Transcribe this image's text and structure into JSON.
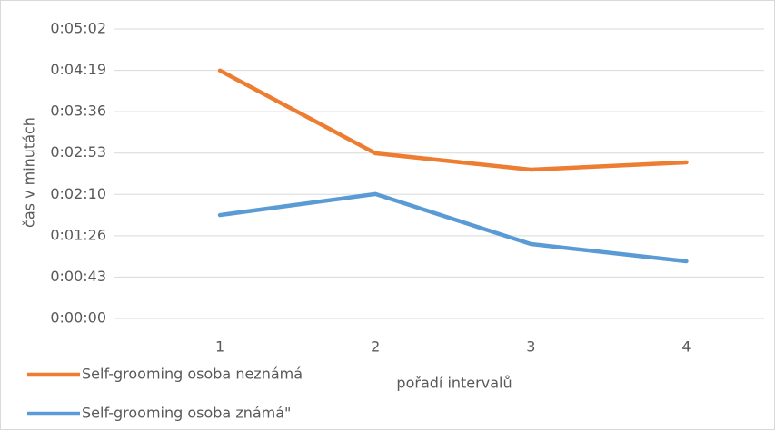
{
  "chart_data": {
    "type": "line",
    "categories": [
      "1",
      "2",
      "3",
      "4"
    ],
    "series": [
      {
        "name": "Self-grooming osoba neznámá",
        "color": "#ed7d31",
        "values": [
          259,
          172.5,
          155.5,
          163
        ]
      },
      {
        "name": "Self-grooming osoba známá\"",
        "color": "#5b9bd5",
        "values": [
          108,
          130,
          77.7,
          59.7
        ]
      }
    ],
    "xlabel": "pořadí intervalů",
    "ylabel": "čas v minutách",
    "ylim": [
      0,
      302.4
    ],
    "yticks": [
      {
        "value": 0,
        "label": "0:00:00"
      },
      {
        "value": 43.2,
        "label": "0:00:43"
      },
      {
        "value": 86.4,
        "label": "0:01:26"
      },
      {
        "value": 129.6,
        "label": "0:02:10"
      },
      {
        "value": 172.8,
        "label": "0:02:53"
      },
      {
        "value": 216,
        "label": "0:03:36"
      },
      {
        "value": 259.2,
        "label": "0:04:19"
      },
      {
        "value": 302.4,
        "label": "0:05:02"
      }
    ],
    "grid": true,
    "legend": "bottom-left"
  }
}
